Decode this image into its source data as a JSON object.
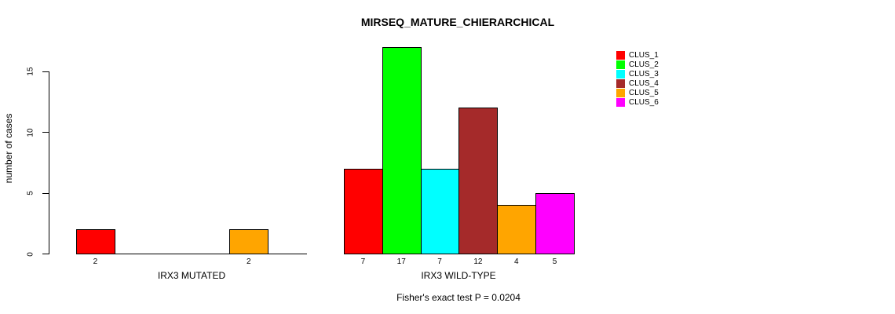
{
  "title": "MIRSEQ_MATURE_CHIERARCHICAL",
  "chart_data": {
    "type": "bar",
    "title": "MIRSEQ_MATURE_CHIERARCHICAL",
    "xlabel": "",
    "ylabel": "number of cases",
    "yticks": [
      0,
      5,
      10,
      15
    ],
    "ylim": [
      0,
      17
    ],
    "grid": false,
    "legend_position": "top-right",
    "bar_border_color": "#000000",
    "clusters": [
      {
        "name": "CLUS_1",
        "color": "#ff0000"
      },
      {
        "name": "CLUS_2",
        "color": "#00ff00"
      },
      {
        "name": "CLUS_3",
        "color": "#00ffff"
      },
      {
        "name": "CLUS_4",
        "color": "#a52a2a"
      },
      {
        "name": "CLUS_5",
        "color": "#ffa500"
      },
      {
        "name": "CLUS_6",
        "color": "#ff00ff"
      }
    ],
    "groups": [
      {
        "label": "IRX3 MUTATED",
        "values": [
          2,
          0,
          0,
          0,
          2,
          0
        ],
        "value_labels": [
          "2",
          "",
          "",
          "",
          "2",
          ""
        ]
      },
      {
        "label": "IRX3 WILD-TYPE",
        "values": [
          7,
          17,
          7,
          12,
          4,
          5
        ],
        "value_labels": [
          "7",
          "17",
          "7",
          "12",
          "4",
          "5"
        ]
      }
    ],
    "annotation": "Fisher's exact test P = 0.0204"
  }
}
